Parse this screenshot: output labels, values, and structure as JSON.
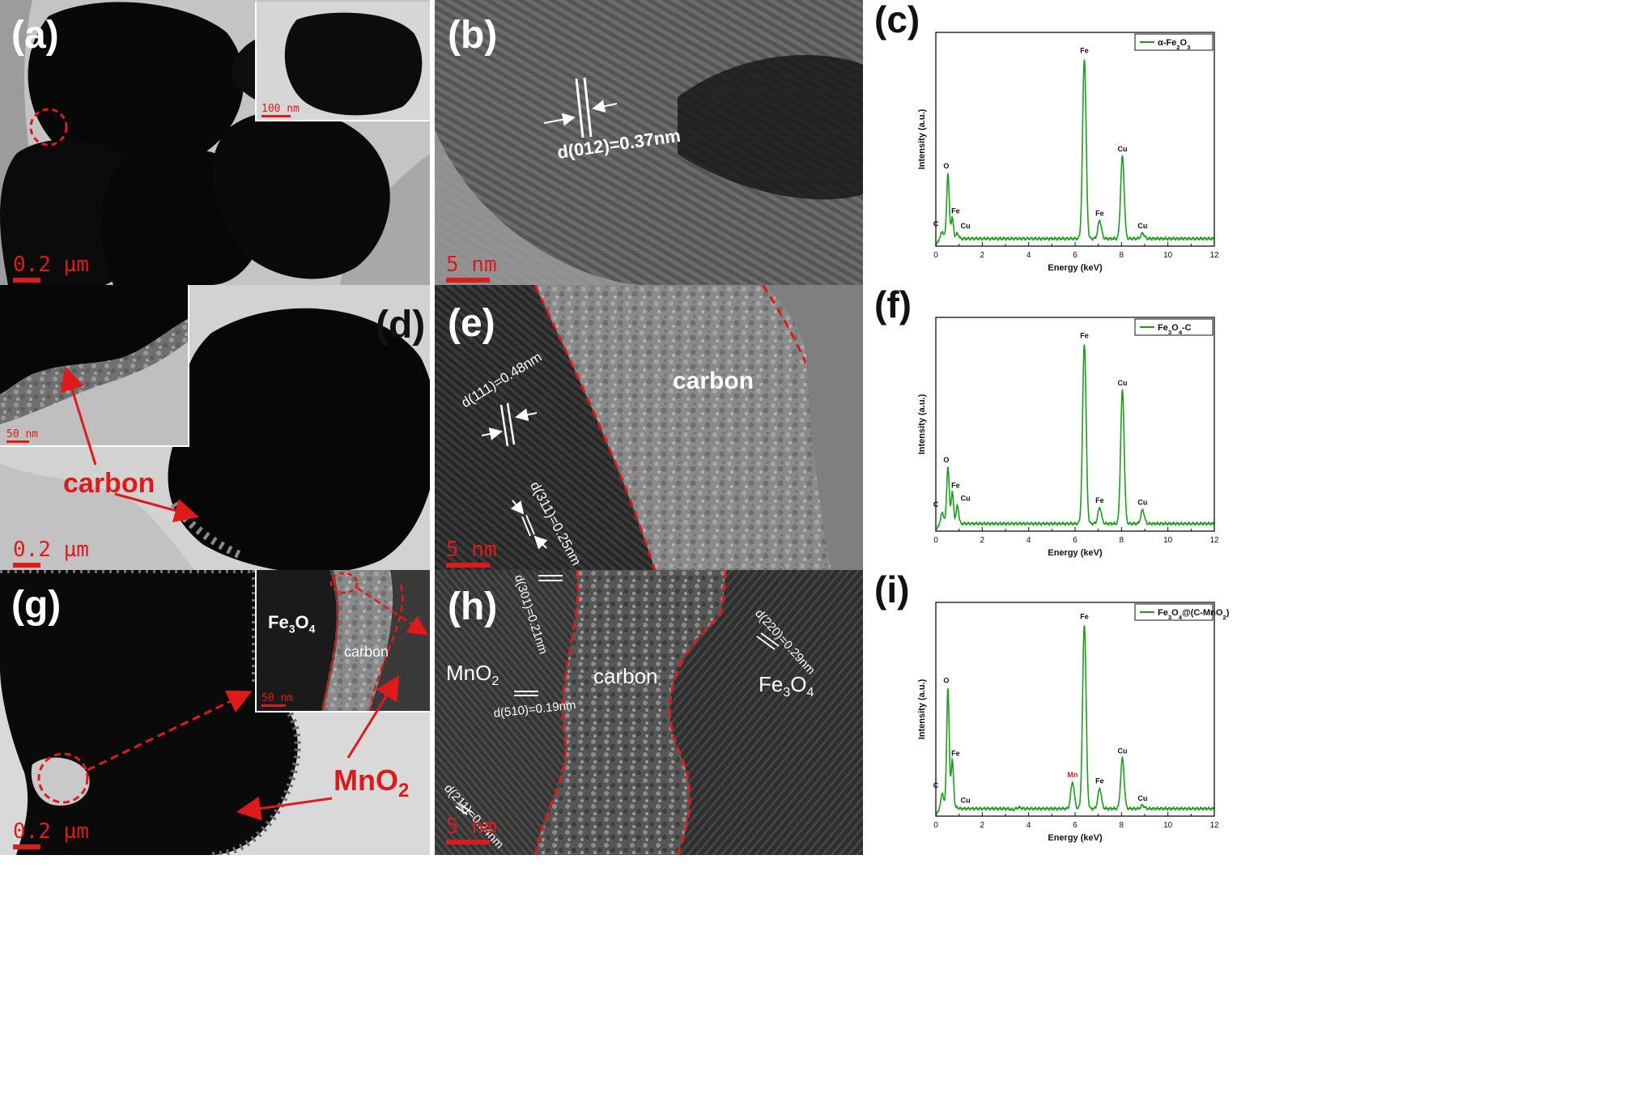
{
  "colors": {
    "spectrum": "#1aa01a",
    "annotation": "#e01a1a",
    "lattice": "#ffffff"
  },
  "panels": {
    "a": {
      "label": "(a)",
      "scale": "0.2 µm",
      "inset_scale": "100 nm"
    },
    "b": {
      "label": "(b)",
      "scale": "5 nm",
      "spacing": "d(012)=0.37nm"
    },
    "d": {
      "label": "(d)",
      "scale": "0.2 µm",
      "inset_scale": "50 nm",
      "carbon": "carbon"
    },
    "e": {
      "label": "(e)",
      "scale": "5 nm",
      "spacing1": "d(111)=0.48nm",
      "spacing2": "d(311)=0.25nm",
      "carbon": "carbon"
    },
    "g": {
      "label": "(g)",
      "scale": "0.2 µm",
      "inset_scale": "50 nm",
      "inset_fe": "Fe3O4",
      "inset_carbon": "carbon",
      "mno2": "MnO2"
    },
    "h": {
      "label": "(h)",
      "scale": "5 nm",
      "mno2": "MnO2",
      "carbon": "carbon",
      "fe": "Fe3O4",
      "d301": "d(301)=0.21nm",
      "d510": "d(510)=0.19nm",
      "d211": "d(211)=0.24nm",
      "d220": "d(220)=0.29nm"
    }
  },
  "chart_data": [
    {
      "type": "line",
      "panel_label": "(c)",
      "xlabel": "Energy (keV)",
      "ylabel": "Intensity (a.u.)",
      "xlim": [
        0,
        12
      ],
      "xticks": [
        0,
        2,
        4,
        6,
        8,
        10,
        12
      ],
      "grid": false,
      "legend_position": "top-right",
      "series": [
        {
          "name": "α-Fe2O3",
          "name_html": "α-Fe<tspan baseline-shift='sub' font-size='70%'>2</tspan>O<tspan baseline-shift='sub' font-size='70%'>3</tspan>",
          "peaks": [
            {
              "x": 0.28,
              "y": 0.07,
              "label": "C"
            },
            {
              "x": 0.52,
              "y": 0.34,
              "label": "O"
            },
            {
              "x": 0.71,
              "y": 0.13,
              "label": "Fe"
            },
            {
              "x": 0.93,
              "y": 0.06,
              "label": "Cu"
            },
            {
              "x": 6.4,
              "y": 0.88,
              "label": "Fe"
            },
            {
              "x": 7.06,
              "y": 0.12,
              "label": "Fe"
            },
            {
              "x": 8.04,
              "y": 0.42,
              "label": "Cu"
            },
            {
              "x": 8.91,
              "y": 0.06,
              "label": "Cu"
            }
          ]
        }
      ]
    },
    {
      "type": "line",
      "panel_label": "(f)",
      "xlabel": "Energy (keV)",
      "ylabel": "Intensity (a.u.)",
      "xlim": [
        0,
        12
      ],
      "xticks": [
        0,
        2,
        4,
        6,
        8,
        10,
        12
      ],
      "grid": false,
      "legend_position": "top-right",
      "series": [
        {
          "name": "Fe3O4-C",
          "name_html": "Fe<tspan baseline-shift='sub' font-size='70%'>3</tspan>O<tspan baseline-shift='sub' font-size='70%'>4</tspan>-C",
          "peaks": [
            {
              "x": 0.28,
              "y": 0.09,
              "label": "C"
            },
            {
              "x": 0.52,
              "y": 0.3,
              "label": "O"
            },
            {
              "x": 0.71,
              "y": 0.18,
              "label": "Fe"
            },
            {
              "x": 0.93,
              "y": 0.12,
              "label": "Cu"
            },
            {
              "x": 6.4,
              "y": 0.88,
              "label": "Fe"
            },
            {
              "x": 7.06,
              "y": 0.11,
              "label": "Fe"
            },
            {
              "x": 8.04,
              "y": 0.66,
              "label": "Cu"
            },
            {
              "x": 8.91,
              "y": 0.1,
              "label": "Cu"
            }
          ]
        }
      ]
    },
    {
      "type": "line",
      "panel_label": "(i)",
      "xlabel": "Energy (keV)",
      "ylabel": "Intensity (a.u.)",
      "xlim": [
        0,
        12
      ],
      "xticks": [
        0,
        2,
        4,
        6,
        8,
        10,
        12
      ],
      "grid": false,
      "legend_position": "top-right",
      "series": [
        {
          "name": "Fe3O4@(C-MnO2)",
          "name_html": "Fe<tspan baseline-shift='sub' font-size='70%'>3</tspan>O<tspan baseline-shift='sub' font-size='70%'>4</tspan>@(C-MnO<tspan baseline-shift='sub' font-size='70%'>2</tspan>)",
          "peaks": [
            {
              "x": 0.28,
              "y": 0.11,
              "label": "C"
            },
            {
              "x": 0.52,
              "y": 0.6,
              "label": "O"
            },
            {
              "x": 0.71,
              "y": 0.26,
              "label": "Fe"
            },
            {
              "x": 0.93,
              "y": 0.04,
              "label": "Cu"
            },
            {
              "x": 3.3,
              "y": 0.03,
              "label": ""
            },
            {
              "x": 3.6,
              "y": 0.04,
              "label": ""
            },
            {
              "x": 5.89,
              "y": 0.16,
              "label": "Mn",
              "highlight": true
            },
            {
              "x": 6.4,
              "y": 0.9,
              "label": "Fe"
            },
            {
              "x": 7.06,
              "y": 0.13,
              "label": "Fe"
            },
            {
              "x": 8.04,
              "y": 0.27,
              "label": "Cu"
            },
            {
              "x": 8.91,
              "y": 0.05,
              "label": "Cu"
            }
          ]
        }
      ]
    }
  ]
}
